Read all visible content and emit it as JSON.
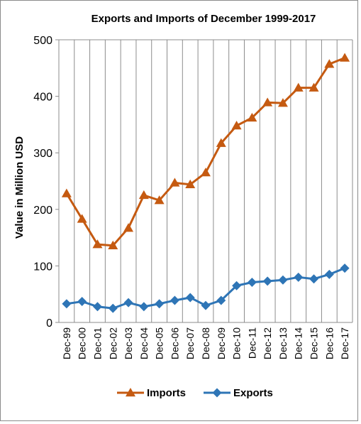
{
  "chart_data": {
    "type": "line",
    "title": "Exports and Imports of December 1999-2017",
    "xlabel": "",
    "ylabel": "Value in  Million  USD",
    "ylim": [
      0,
      500
    ],
    "yticks": [
      "0",
      "100",
      "200",
      "300",
      "400",
      "500"
    ],
    "grid": "vertical",
    "legend": "bottom",
    "categories": [
      "Dec-99",
      "Dec-00",
      "Dec-01",
      "Dec-02",
      "Dec-03",
      "Dec-04",
      "Dec-05",
      "Dec-06",
      "Dec-07",
      "Dec-08",
      "Dec-09",
      "Dec-10",
      "Dec-11",
      "Dec-12",
      "Dec-13",
      "Dec-14",
      "Dec-15",
      "Dec-16",
      "Dec-17"
    ],
    "series": [
      {
        "name": "Imports",
        "color": "#C55A11",
        "marker": "triangle",
        "values": [
          228,
          183,
          138,
          136,
          167,
          225,
          216,
          247,
          244,
          265,
          317,
          348,
          362,
          389,
          388,
          415,
          415,
          457,
          468
        ]
      },
      {
        "name": "Exports",
        "color": "#2E75B6",
        "marker": "diamond",
        "values": [
          33,
          37,
          28,
          25,
          35,
          28,
          33,
          39,
          44,
          30,
          39,
          65,
          71,
          73,
          75,
          80,
          77,
          85,
          96
        ]
      }
    ]
  }
}
